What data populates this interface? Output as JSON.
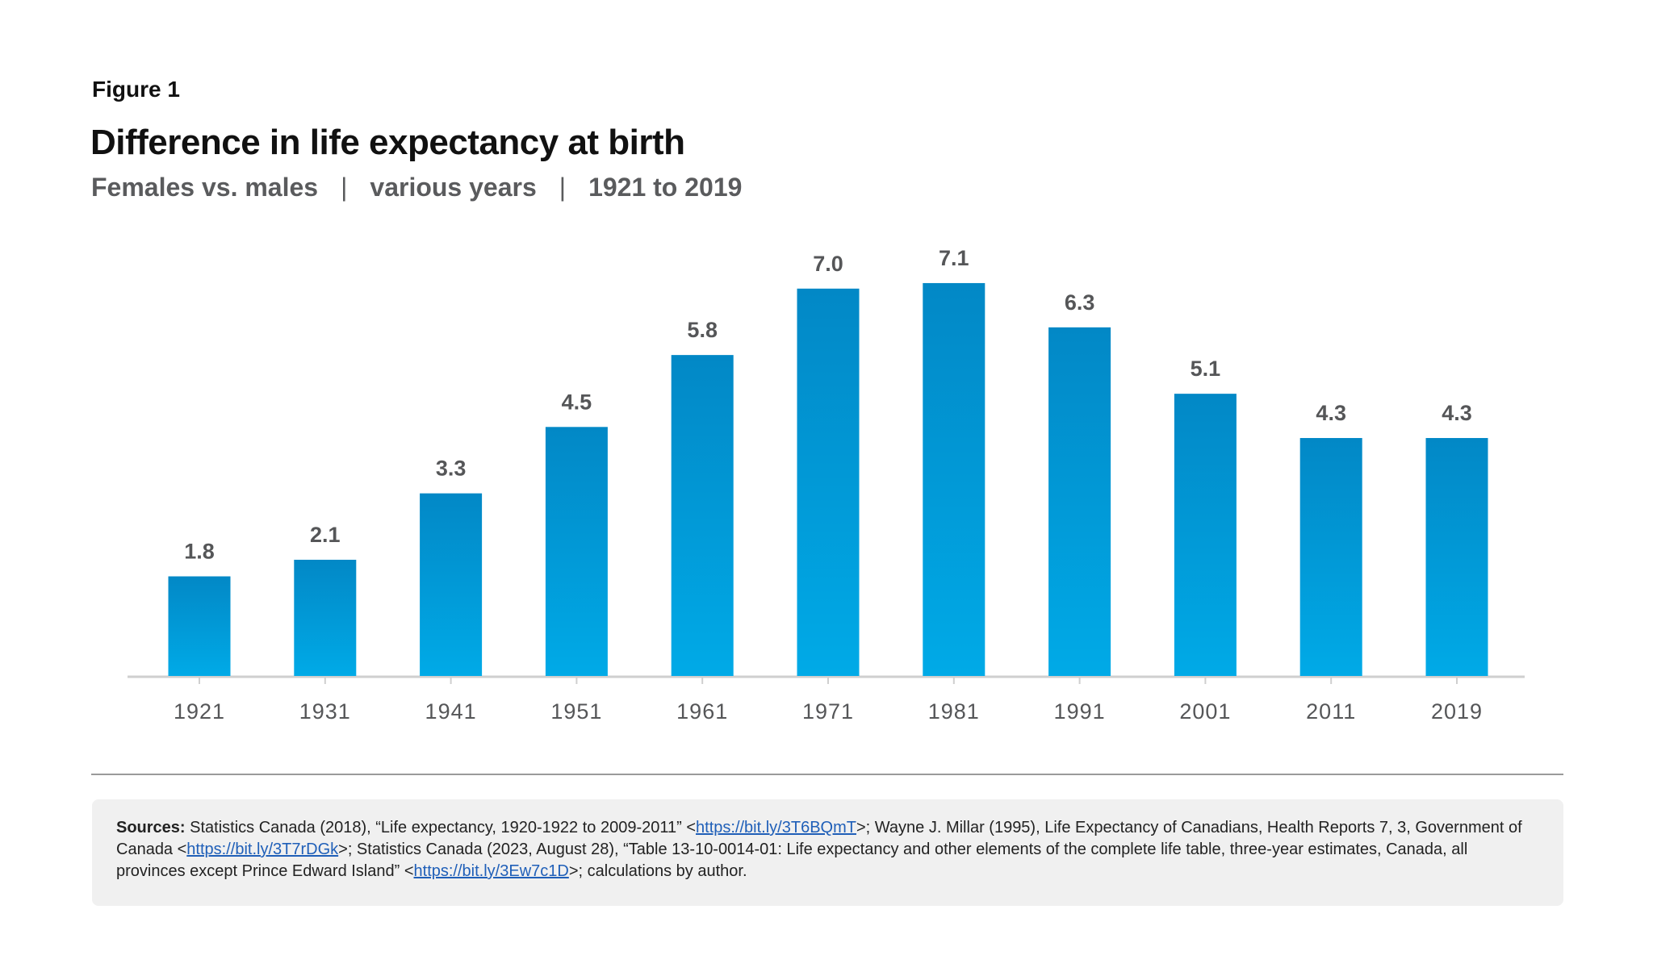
{
  "figure_label": "Figure 1",
  "subtitle": {
    "part1": "Females vs. males",
    "part2": "various years",
    "part3": "1921 to 2019",
    "separator": "|"
  },
  "colors": {
    "bar_top": "#0288c6",
    "bar_bottom": "#00aae7",
    "label": "#555658",
    "axis": "#cfcfcf"
  },
  "chart_data": {
    "type": "bar",
    "title": "Difference in life expectancy at birth",
    "xlabel": "",
    "ylabel": "",
    "categories": [
      "1921",
      "1931",
      "1941",
      "1951",
      "1961",
      "1971",
      "1981",
      "1991",
      "2001",
      "2011",
      "2019"
    ],
    "values": [
      1.8,
      2.1,
      3.3,
      4.5,
      5.8,
      7.0,
      7.1,
      6.3,
      5.1,
      4.3,
      4.3
    ],
    "value_labels": [
      "1.8",
      "2.1",
      "3.3",
      "4.5",
      "5.8",
      "7.0",
      "7.1",
      "6.3",
      "5.1",
      "4.3",
      "4.3"
    ],
    "ylim": [
      0,
      7.1
    ],
    "grid": false,
    "legend": "none"
  },
  "sources": {
    "label": "Sources:",
    "text1": " Statistics Canada (2018), “Life expectancy, 1920-1922 to 2009-2011” <",
    "link1": "https://bit.ly/3T6BQmT",
    "text2": ">; Wayne J. Millar (1995), Life Expectancy of Canadians, Health Reports 7, 3, Government of Canada <",
    "link2": "https://bit.ly/3T7rDGk",
    "text3": ">; Statistics Canada (2023, August 28), “Table 13-10-0014-01: Life expectancy and other elements of the complete life table, three-year estimates, Canada, all provinces except Prince Edward Island” <",
    "link3": "https://bit.ly/3Ew7c1D",
    "text4": ">; calculations by author."
  }
}
